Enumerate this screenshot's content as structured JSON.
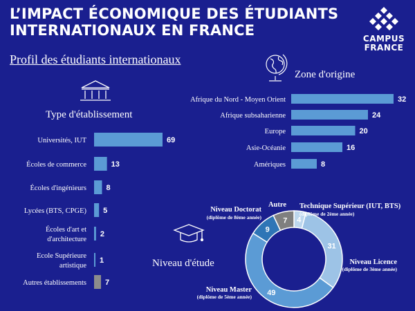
{
  "header": {
    "title_line1": "L’IMPACT ÉCONOMIQUE DES ÉTUDIANTS",
    "title_line2": "INTERNATIONAUX EN FRANCE",
    "subtitle": "Profil des étudiants internationaux",
    "logo_line1": "CAMPUS",
    "logo_line2": "FRANCE"
  },
  "colors": {
    "background": "#1a1f8f",
    "bar": "#5b9bd5",
    "bar_other": "#8c8c8c",
    "donut_light": "#bdd7ee",
    "donut_mid": "#9dc3e6",
    "donut_main": "#5b9bd5",
    "donut_dark": "#2e75b6",
    "donut_grey": "#7f7f7f"
  },
  "chart_data": [
    {
      "type": "bar",
      "orientation": "horizontal",
      "title": "Type d'établissement",
      "categories": [
        "Universités, IUT",
        "Écoles de commerce",
        "Écoles d'ingénieurs",
        "Lycées (BTS, CPGE)",
        "Écoles d'art et d'architecture",
        "Ecole Supérieure artistique",
        "Autres établissements"
      ],
      "category_lines": [
        [
          "Universités, IUT"
        ],
        [
          "Écoles de commerce"
        ],
        [
          "Écoles d'ingénieurs"
        ],
        [
          "Lycées (BTS, CPGE)"
        ],
        [
          "Écoles d'art et",
          "d'architecture"
        ],
        [
          "Ecole Supérieure",
          "artistique"
        ],
        [
          "Autres établissements"
        ]
      ],
      "values": [
        69,
        13,
        8,
        5,
        2,
        1,
        7
      ],
      "value_labels": [
        "69",
        "13",
        "8",
        "5",
        "2",
        "1",
        "7"
      ],
      "highlight": "Autres établissements"
    },
    {
      "type": "bar",
      "orientation": "horizontal",
      "title": "Zone d'origine",
      "categories": [
        "Afrique du Nord - Moyen Orient",
        "Afrique subsaharienne",
        "Europe",
        "Asie-Océanie",
        "Amériques"
      ],
      "values": [
        32,
        24,
        20,
        16,
        8
      ],
      "value_labels": [
        "32",
        "24",
        "20",
        "16",
        "8"
      ]
    },
    {
      "type": "pie",
      "style": "donut",
      "title": "Niveau d'étude",
      "slices": [
        {
          "label": "Technique Supérieur (IUT, BTS)",
          "sublabel": "(diplôme de 2ème année)",
          "value": 4,
          "value_label": "4",
          "color": "#bdd7ee"
        },
        {
          "label": "Niveau Licence",
          "sublabel": "(diplôme de 3ème année)",
          "value": 31,
          "value_label": "31",
          "color": "#9dc3e6"
        },
        {
          "label": "Niveau Master",
          "sublabel": "(diplôme de 5ème année)",
          "value": 49,
          "value_label": "49",
          "color": "#5b9bd5"
        },
        {
          "label": "Niveau Doctorat",
          "sublabel": "(diplôme de 8ème année)",
          "value": 9,
          "value_label": "9",
          "color": "#2e75b6"
        },
        {
          "label": "Autre",
          "sublabel": "",
          "value": 7,
          "value_label": "7",
          "color": "#7f7f7f"
        }
      ]
    }
  ]
}
